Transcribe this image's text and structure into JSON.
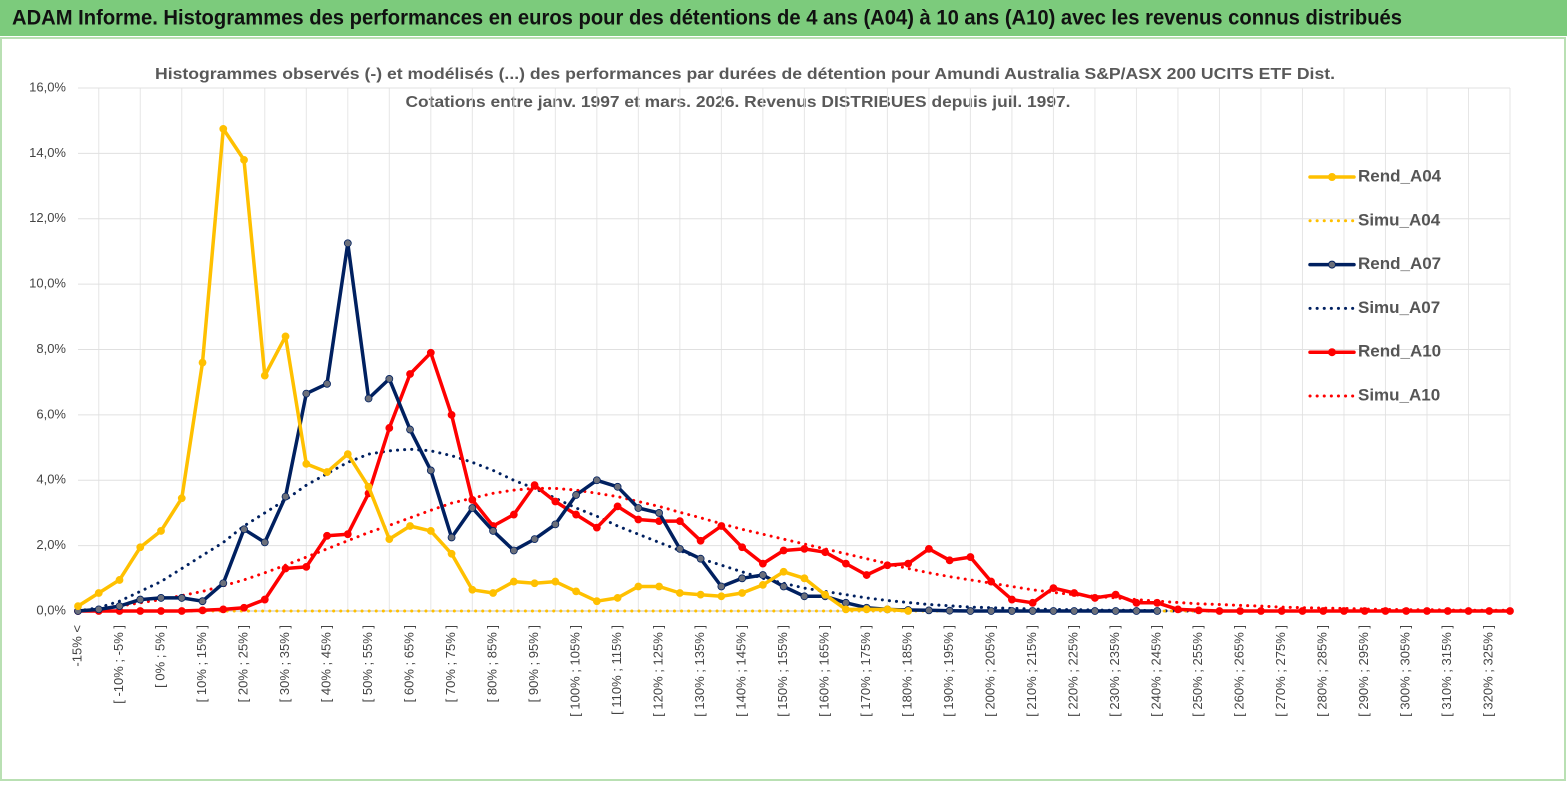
{
  "chart_data": {
    "type": "line",
    "title": "ADAM Informe. Histogrammes des performances en euros pour des détentions de 4 ans (A04) à 10 ans (A10) avec les revenus connus distribués",
    "subtitle": [
      "Histogrammes observés (-) et modélisés (...) des performances par durées de détention pour Amundi Australia S&P/ASX 200 UCITS ETF Dist.",
      "Cotations entre janv. 1997 et mars. 2026. Revenus DISTRIBUES depuis juil. 1997."
    ],
    "categories": [
      "-15% <",
      null,
      "[ -10% ; -5% ]",
      null,
      "[ 0% ; 5% ]",
      null,
      "[ 10% ; 15% ]",
      null,
      "[ 20% ; 25% ]",
      null,
      "[ 30% ; 35% ]",
      null,
      "[ 40% ; 45% ]",
      null,
      "[ 50% ; 55% ]",
      null,
      "[ 60% ; 65% ]",
      null,
      "[ 70% ; 75% ]",
      null,
      "[ 80% ; 85% ]",
      null,
      "[ 90% ; 95% ]",
      null,
      "[ 100% ; 105% ]",
      null,
      "[ 110% ; 115% ]",
      null,
      "[ 120% ; 125% ]",
      null,
      "[ 130% ; 135% ]",
      null,
      "[ 140% ; 145% ]",
      null,
      "[ 150% ; 155% ]",
      null,
      "[ 160% ; 165% ]",
      null,
      "[ 170% ; 175% ]",
      null,
      "[ 180% ; 185% ]",
      null,
      "[ 190% ; 195% ]",
      null,
      "[ 200% ; 205% ]",
      null,
      "[ 210% ; 215% ]",
      null,
      "[ 220% ; 225% ]",
      null,
      "[ 230% ; 235% ]",
      null,
      "[ 240% ; 245% ]",
      null,
      "[ 250% ; 255% ]",
      null,
      "[ 260% ; 265% ]",
      null,
      "[ 270% ; 275% ]",
      null,
      "[ 280% ; 285% ]",
      null,
      "[ 290% ; 295% ]",
      null,
      "[ 300% ; 305% ]",
      null,
      "[ 310% ; 315% ]",
      null,
      "[ 320% ; 325% ]",
      null
    ],
    "ylim": [
      0,
      16
    ],
    "yticks": [
      {
        "value": 0,
        "label": "0,0%"
      },
      {
        "value": 2,
        "label": "2,0%"
      },
      {
        "value": 4,
        "label": "4,0%"
      },
      {
        "value": 6,
        "label": "6,0%"
      },
      {
        "value": 8,
        "label": "8,0%"
      },
      {
        "value": 10,
        "label": "10,0%"
      },
      {
        "value": 12,
        "label": "12,0%"
      },
      {
        "value": 14,
        "label": "14,0%"
      },
      {
        "value": 16,
        "label": "16,0%"
      }
    ],
    "grid": true,
    "legend": "right",
    "series": [
      {
        "name": "Rend_A04",
        "color": "#FFC000",
        "style": "solid",
        "marker": "#FFC000",
        "values": [
          0.15,
          0.55,
          0.95,
          1.95,
          2.45,
          3.45,
          7.6,
          14.75,
          13.8,
          7.2,
          8.4,
          4.5,
          4.25,
          4.8,
          3.8,
          2.2,
          2.6,
          2.45,
          1.75,
          0.65,
          0.55,
          0.9,
          0.85,
          0.9,
          0.6,
          0.3,
          0.4,
          0.75,
          0.75,
          0.55,
          0.5,
          0.45,
          0.55,
          0.8,
          1.2,
          1.0,
          0.5,
          0.05,
          0.05,
          0.05,
          0,
          null,
          null,
          null,
          null,
          null,
          null,
          null,
          null,
          null,
          null,
          null,
          null,
          null,
          null,
          null,
          null,
          null,
          null,
          null,
          null,
          null,
          null,
          null,
          null,
          null,
          null,
          null,
          null,
          null
        ]
      },
      {
        "name": "Simu_A04",
        "color": "#FFC000",
        "style": "dotted",
        "values": [
          0,
          0,
          0,
          0,
          0,
          0,
          0,
          0,
          0,
          0,
          0,
          0,
          0,
          0,
          0,
          0,
          0,
          0,
          0,
          0,
          0,
          0,
          0,
          0,
          0,
          0,
          0,
          0,
          0,
          0,
          0,
          0,
          0,
          0,
          0,
          0,
          0,
          0,
          0,
          0,
          0,
          0,
          0,
          0,
          0,
          0,
          0,
          0,
          0,
          0,
          0,
          0,
          0,
          0,
          0,
          0,
          0,
          0,
          0,
          0,
          0,
          0,
          0,
          0,
          0,
          0,
          0,
          0,
          0,
          0
        ]
      },
      {
        "name": "Rend_A07",
        "color": "#002060",
        "style": "solid",
        "marker": "#6b6f7a",
        "values": [
          0,
          0.05,
          0.15,
          0.35,
          0.4,
          0.4,
          0.3,
          0.85,
          2.5,
          2.1,
          3.5,
          6.65,
          6.95,
          11.25,
          6.5,
          7.1,
          5.55,
          4.3,
          2.25,
          3.15,
          2.45,
          1.85,
          2.2,
          2.65,
          3.55,
          4.0,
          3.8,
          3.15,
          3.0,
          1.9,
          1.6,
          0.75,
          1.0,
          1.1,
          0.75,
          0.45,
          0.45,
          0.25,
          0.1,
          0.05,
          0.03,
          0.02,
          0.01,
          0,
          0,
          0,
          0,
          0,
          0,
          0,
          0,
          0,
          0,
          null,
          null,
          null,
          null,
          null,
          null,
          null,
          null,
          null,
          null,
          null,
          null,
          null,
          null,
          null,
          null,
          null
        ]
      },
      {
        "name": "Simu_A07",
        "color": "#002060",
        "style": "dotted",
        "values": [
          0,
          0.1,
          0.3,
          0.6,
          0.9,
          1.3,
          1.7,
          2.1,
          2.6,
          3.0,
          3.4,
          3.85,
          4.2,
          4.55,
          4.8,
          4.9,
          4.95,
          4.9,
          4.75,
          4.55,
          4.3,
          4.0,
          3.75,
          3.45,
          3.15,
          2.9,
          2.6,
          2.35,
          2.1,
          1.85,
          1.6,
          1.4,
          1.2,
          1.0,
          0.85,
          0.7,
          0.6,
          0.5,
          0.4,
          0.32,
          0.26,
          0.2,
          0.16,
          0.12,
          0.1,
          0.08,
          0.06,
          0.05,
          0.04,
          0.03,
          0.02,
          0.02,
          0.01,
          0,
          0,
          0,
          0,
          0,
          0,
          0,
          0,
          0,
          0,
          0,
          0,
          0,
          0,
          0,
          0,
          0
        ]
      },
      {
        "name": "Rend_A10",
        "color": "#FF0000",
        "style": "solid",
        "marker": "#FF0000",
        "values": [
          0,
          0,
          0,
          0,
          0,
          0,
          0.02,
          0.05,
          0.1,
          0.35,
          1.3,
          1.35,
          2.3,
          2.35,
          3.6,
          5.6,
          7.25,
          7.9,
          6.0,
          3.4,
          2.6,
          2.95,
          3.85,
          3.35,
          2.95,
          2.55,
          3.2,
          2.8,
          2.75,
          2.75,
          2.15,
          2.6,
          1.95,
          1.45,
          1.85,
          1.9,
          1.8,
          1.45,
          1.1,
          1.4,
          1.45,
          1.9,
          1.55,
          1.65,
          0.9,
          0.35,
          0.25,
          0.7,
          0.55,
          0.4,
          0.5,
          0.25,
          0.25,
          0.05,
          0.02,
          0,
          0,
          0,
          0,
          0,
          0,
          0,
          0,
          0,
          0,
          0,
          0,
          0,
          0,
          0
        ]
      },
      {
        "name": "Simu_A10",
        "color": "#FF0000",
        "style": "dotted",
        "values": [
          0,
          0.08,
          0.15,
          0.25,
          0.35,
          0.47,
          0.6,
          0.77,
          0.95,
          1.17,
          1.4,
          1.65,
          1.9,
          2.15,
          2.4,
          2.62,
          2.85,
          3.08,
          3.3,
          3.45,
          3.6,
          3.7,
          3.75,
          3.75,
          3.7,
          3.6,
          3.5,
          3.35,
          3.2,
          3.02,
          2.85,
          2.67,
          2.5,
          2.35,
          2.2,
          2.05,
          1.9,
          1.75,
          1.6,
          1.45,
          1.3,
          1.17,
          1.05,
          0.95,
          0.85,
          0.75,
          0.65,
          0.57,
          0.5,
          0.45,
          0.4,
          0.35,
          0.3,
          0.26,
          0.22,
          0.2,
          0.17,
          0.15,
          0.12,
          0.1,
          0.09,
          0.08,
          0.06,
          0.05,
          0.04,
          0.04,
          0.03,
          0.02,
          0.02,
          0.02
        ]
      }
    ]
  }
}
